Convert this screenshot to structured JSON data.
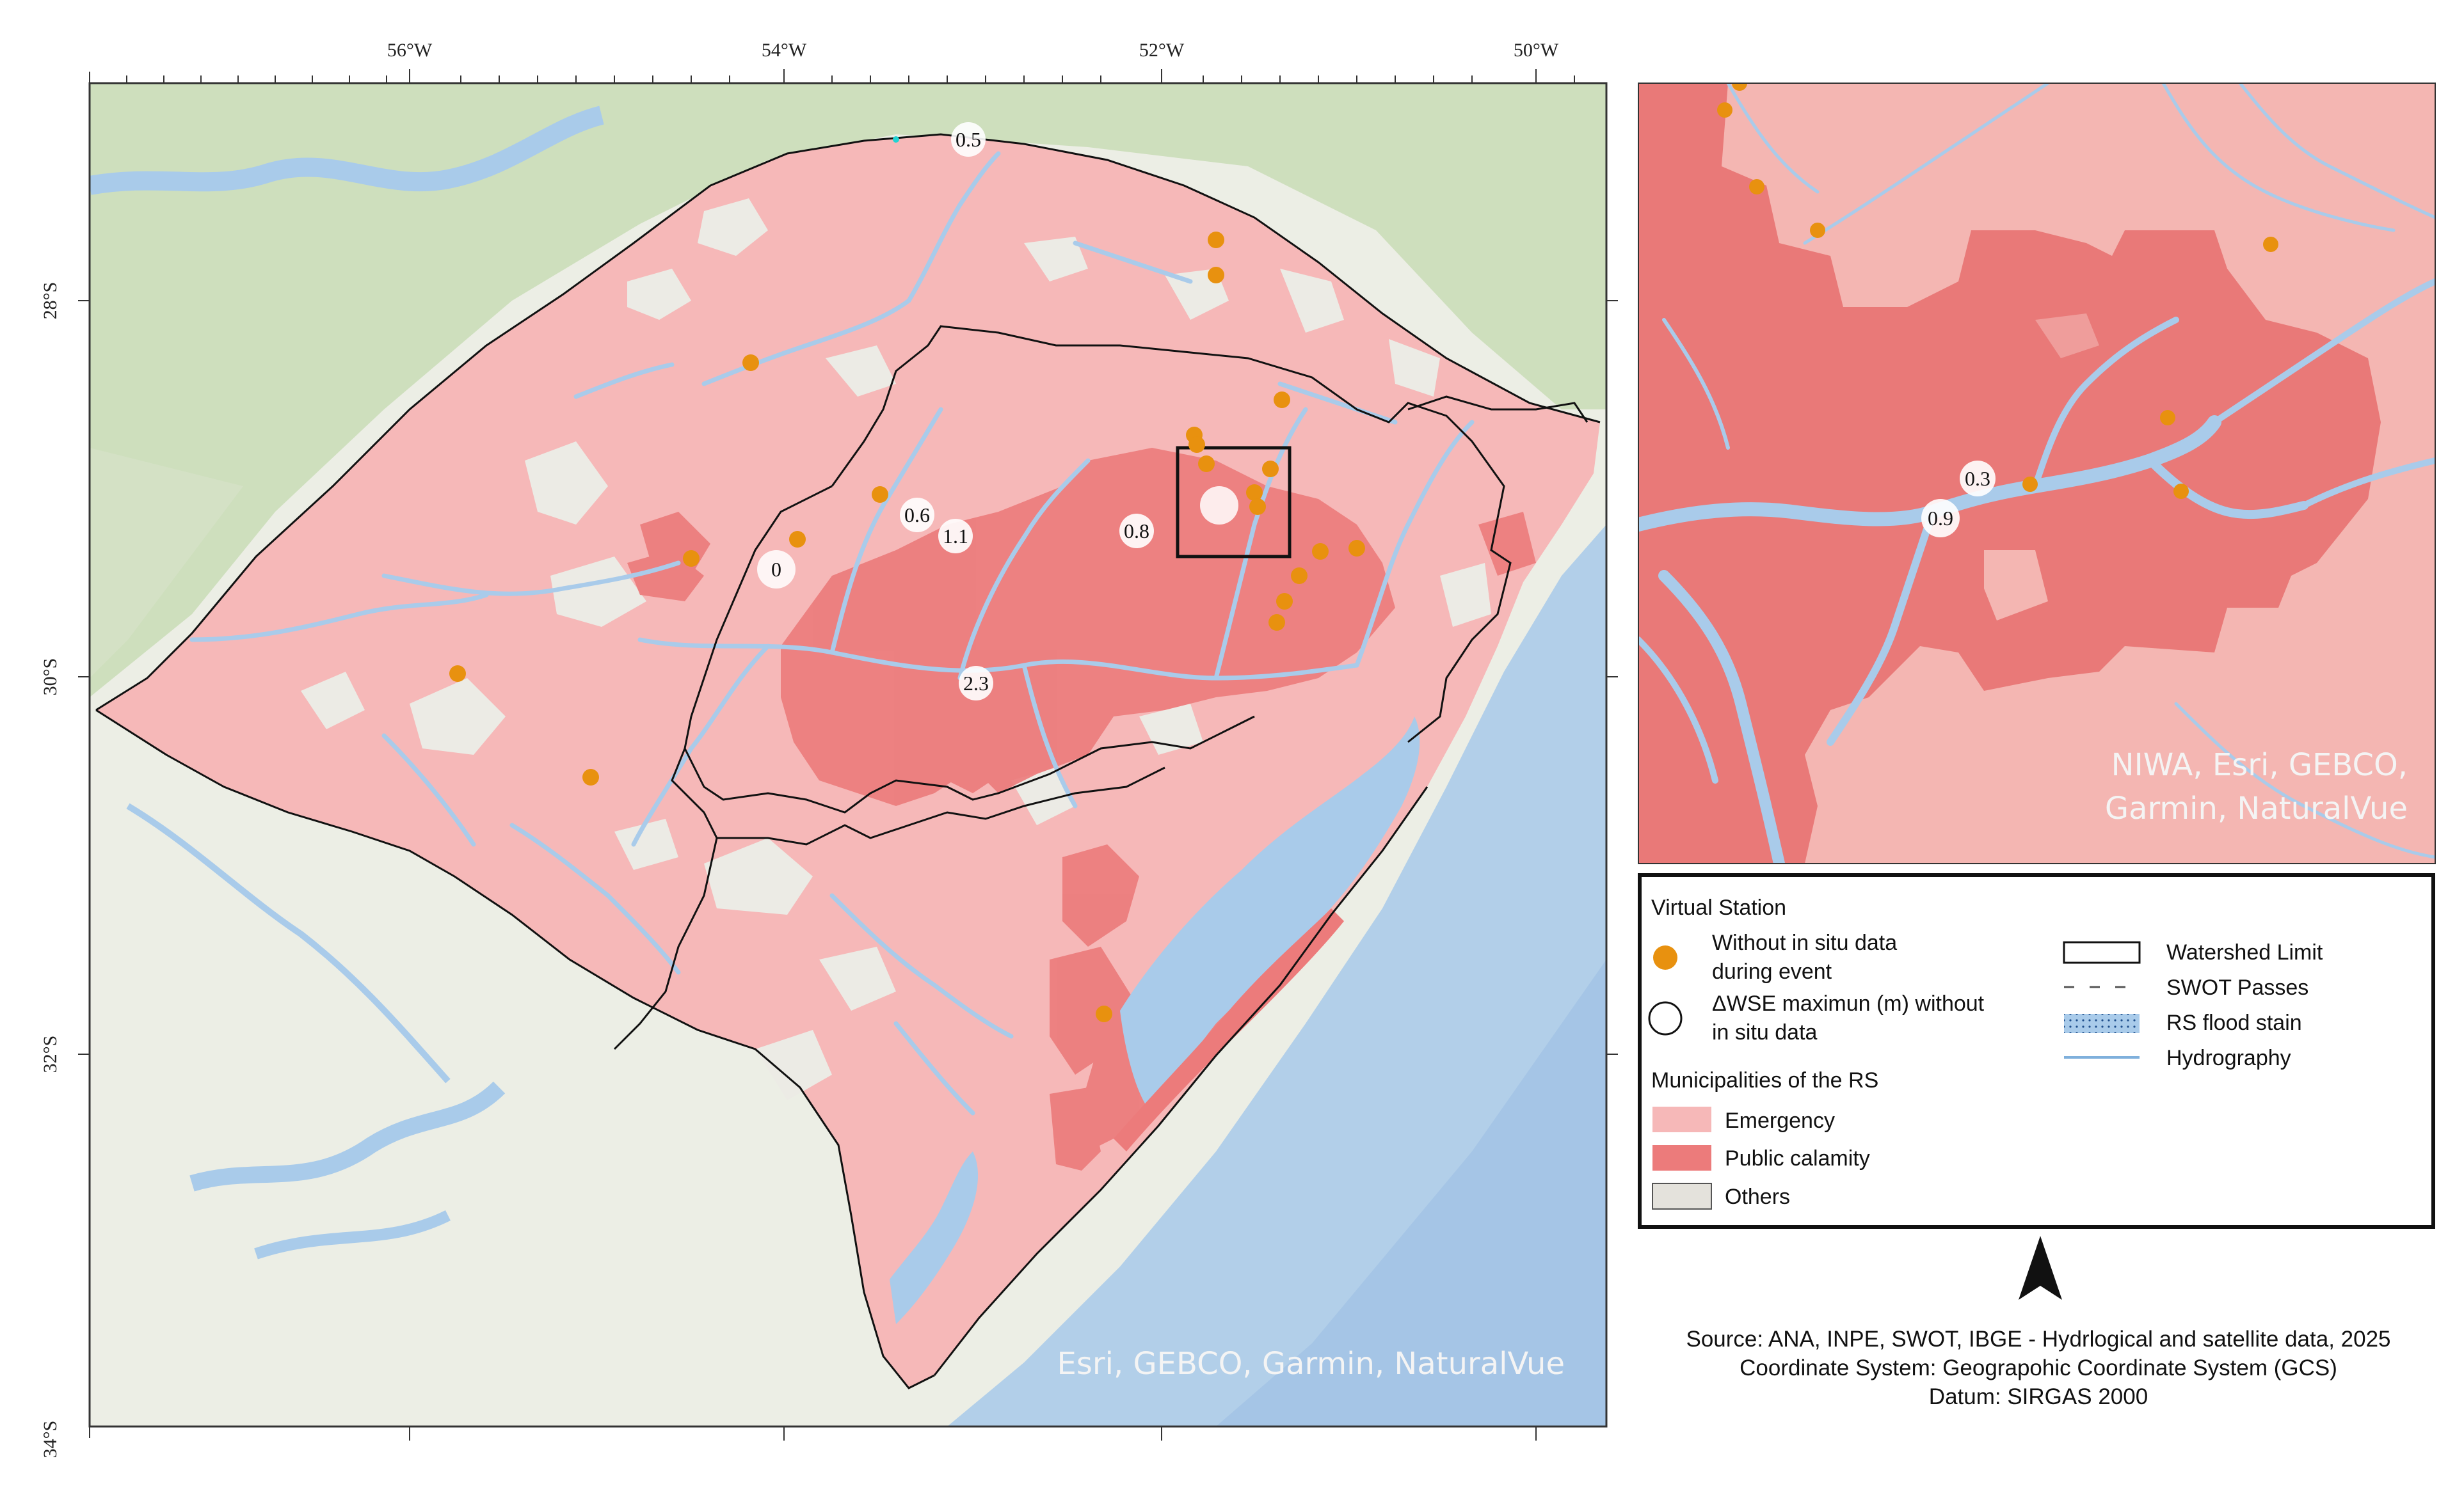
{
  "main_map": {
    "lon_labels": [
      "56°W",
      "54°W",
      "52°W",
      "50°W"
    ],
    "lat_labels": [
      "28°S",
      "30°S",
      "32°S",
      "34°S"
    ],
    "credit": "Esri, GEBCO, Garmin, NaturalVue"
  },
  "stations_delta": [
    {
      "id": "s1",
      "value": "0.5"
    },
    {
      "id": "s2",
      "value": "0.6"
    },
    {
      "id": "s3",
      "value": "1.1"
    },
    {
      "id": "s4",
      "value": "0.8"
    },
    {
      "id": "s5",
      "value": "0"
    },
    {
      "id": "s6",
      "value": "2.3"
    }
  ],
  "inset_map": {
    "credit_line1": "NIWA, Esri, GEBCO,",
    "credit_line2": "Garmin, NaturalVue",
    "stations_delta": [
      {
        "id": "i1",
        "value": "0.3"
      },
      {
        "id": "i2",
        "value": "0.9"
      }
    ]
  },
  "legend": {
    "title": "Virtual Station",
    "without_line1": "Without in situ data",
    "without_line2": "during event",
    "delta_line1": "ΔWSE maximun (m) without",
    "delta_line2": "in situ data",
    "municipalities_title": "Municipalities of the RS",
    "emergency": "Emergency",
    "public_calamity": "Public calamity",
    "others": "Others",
    "watershed_limit": "Watershed Limit",
    "swot_passes": "SWOT Passes",
    "rs_flood_stain": "RS flood stain",
    "hydrography": "Hydrography"
  },
  "source": {
    "line1": "Source: ANA, INPE, SWOT, IBGE - Hydrlogical and satellite data, 2025",
    "line2": "Coordinate System: Geograpohic Coordinate System (GCS)",
    "line3": "Datum: SIRGAS 2000"
  },
  "colors": {
    "emergency": "#f6b8b8",
    "public_calamity": "#ec7b7b",
    "others": "#e4e2dc",
    "station_orange": "#e8910f",
    "water": "#a9cbea",
    "ocean": "#b2cfe9",
    "land_green": "#c9dcb6",
    "land_light": "#eceee5"
  }
}
